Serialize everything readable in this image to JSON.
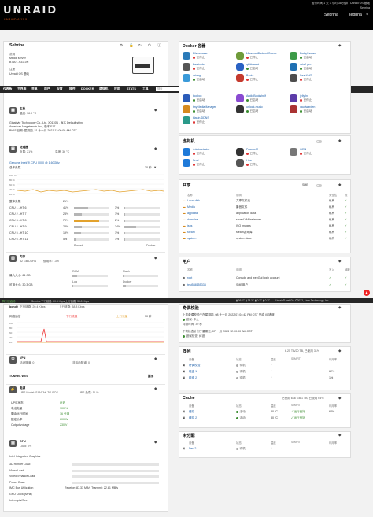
{
  "header": {
    "logo": "UNRAID",
    "logo_sub": "UNRAID 6.11.5",
    "info_line1": "运行时间 1 天 3 小时 38 分钟 | Unraid OS 基础",
    "info_line2": "Sebrina",
    "server_name": "Sebrina",
    "server_user": "sebrina"
  },
  "nav": {
    "items": [
      "仪表板",
      "主界面",
      "共享",
      "用户",
      "设置",
      "插件",
      "DOCKER",
      "虚拟机",
      "应用",
      "STATS",
      "工具"
    ],
    "search_placeholder": "搜索"
  },
  "status_bar": {
    "left": "阵列已启动",
    "mid": "Sebrina  下行链路: 20.4 Kbps    上行链路: 38.8 Kbps",
    "right": "Unraid® webGui ©2022, Lime Technology, Inc."
  },
  "system": {
    "title": "Sebrina",
    "model_label": "说明",
    "model": "Media server",
    "model_id": "B760T-X3110N",
    "registration_label": "注册",
    "registration": "Unraid OS 基础",
    "mobo": "Gigabyte Technology Co., Ltd. X0110N , 版本 Default string",
    "bios": "American Megatrends Inc., 版本 F17",
    "bios_date": "BIOS 日期: 星期四, 21 十一月 2021 12:00:00 AM CST"
  },
  "mainboard": {
    "title": "主板",
    "temp": "温度: 38.0 °C"
  },
  "processor": {
    "title": "处理器",
    "load": "负载: 21%",
    "temp": "温度: 36 °C",
    "model": "Genuine Intel(R) CPU 0000 @ 1.60GHz",
    "overall_label": "总体负载",
    "interval": "30 秒",
    "cpus": [
      {
        "name": "整体负载",
        "a": "21%",
        "b": ""
      },
      {
        "name": "CPU 1 - HT 6",
        "a": "41%",
        "b": "3%"
      },
      {
        "name": "CPU 2 - HT 7",
        "a": "23%",
        "b": "1%"
      },
      {
        "name": "CPU 3 - HT 8",
        "a": "70%",
        "b": "2%"
      },
      {
        "name": "CPU 4 - HT 9",
        "a": "23%",
        "b": "34%"
      },
      {
        "name": "CPU 5 - HT 10",
        "a": "19%",
        "b": "1%"
      },
      {
        "name": "CPU 6 - HT 11",
        "a": "5%",
        "b": "1%"
      }
    ],
    "cpu_values": [
      0.21,
      0.41,
      0.23,
      0.7,
      0.23,
      0.19,
      0.05
    ],
    "cpu_values_b": [
      0,
      0.03,
      0.01,
      0.02,
      0.34,
      0.01,
      0.01
    ],
    "extra_labels": [
      "Pinned",
      "Docker"
    ]
  },
  "memory": {
    "title": "内存",
    "total": "32 GB DDR4",
    "usage": "使用率: 13%",
    "max": "最大大小: 64 GB",
    "usable": "可用大小: 30.3 GB",
    "ram_label": "RAM",
    "flash_label": "Flash",
    "log_label": "Log",
    "docker_label": "Docker",
    "ram_pct": "13%",
    "flash_pct": "2%",
    "log_pct": "1%",
    "docker_pct": "8%"
  },
  "network": {
    "title": "网络",
    "iface": "bond0",
    "down": "下行链路: 20.4 Kbps",
    "up": "上行链路: 38.8 Kbps",
    "legend_down": "下行流量",
    "legend_up": "上行流量",
    "graph_label": "网络通信",
    "interval": "30 秒",
    "y_ticks": [
      "100",
      "80",
      "60",
      "40",
      "20",
      "0"
    ]
  },
  "vpn": {
    "title": "VPN",
    "status": "活动隧道: 0",
    "config": "非活动隧道: 0",
    "tunnel_label": "TUNNEL WG0",
    "tunnel_status": "握手"
  },
  "power": {
    "title": "电源",
    "ups_model": "UPS Model: SANTAK TG-BOX",
    "load": "UPS 负载: 11 %",
    "rows": [
      {
        "k": "UPS 状态",
        "v": "在线"
      },
      {
        "k": "电池电量",
        "v": "100 %"
      },
      {
        "k": "剩余运行时间",
        "v": "16 分钟"
      },
      {
        "k": "额定功率",
        "v": "600 W"
      },
      {
        "k": "Output voltage",
        "v": "230 V"
      }
    ]
  },
  "gpu": {
    "title": "GPU",
    "load": "Load: 0%",
    "model": "Intel Integrated Graphics",
    "rows": [
      "3D Render Load",
      "Video Load",
      "VideoEnhance Load",
      "Power Draw",
      "IMC Bus Utilization",
      "GPU Clock (MHz)",
      "Interrupts/Sec"
    ],
    "bus": "Receive: 87.33 MB/s    Transmit: 22.81 MB/s"
  },
  "docker": {
    "title": "Docker 容器",
    "containers": [
      {
        "name": "Filebrowser",
        "status": "已停止"
      },
      {
        "name": "MinecraftBedrockServer",
        "status": "已停止"
      },
      {
        "name": "EmbyServer",
        "status": "已启动"
      },
      {
        "name": "free-tools",
        "status": "已停止"
      },
      {
        "name": "qbittorrent",
        "status": "已启动"
      },
      {
        "name": "aria2-pro",
        "status": "已启动"
      },
      {
        "name": "ariang",
        "status": "已启动"
      },
      {
        "name": "Baota",
        "status": "已停止"
      },
      {
        "name": "SearXNG",
        "status": "已停止"
      },
      {
        "name": "kodbox",
        "status": "已启动"
      },
      {
        "name": "AudioBookshelf",
        "status": "已启动"
      },
      {
        "name": "jellyfin",
        "status": "已停止"
      },
      {
        "name": "tinyMediaManager",
        "status": "已启动"
      },
      {
        "name": "unlock-music",
        "status": "已启动"
      },
      {
        "name": "vaultwarden",
        "status": "已启动"
      },
      {
        "name": "klauin-DDNS",
        "status": "已停止"
      }
    ]
  },
  "vms": {
    "title": "虚拟机",
    "list": [
      {
        "name": "Administrator",
        "status": "已停止"
      },
      {
        "name": "Darwin42",
        "status": "已停止"
      },
      {
        "name": "OSM",
        "status": "已停止"
      },
      {
        "name": "Dual",
        "status": "已停止"
      },
      {
        "name": "Lion",
        "status": "已停止"
      }
    ]
  },
  "shares": {
    "title": "共享",
    "filter": "SMB",
    "headers": [
      "名称",
      "说明",
      "安全性",
      "流"
    ],
    "rows": [
      {
        "name": "Local disk",
        "desc": "共享文件夹",
        "sec": "私有"
      },
      {
        "name": "Media",
        "desc": "影音文件",
        "sec": "私有"
      },
      {
        "name": "appdata",
        "desc": "application data",
        "sec": "私有"
      },
      {
        "name": "domains",
        "desc": "saved VM instances",
        "sec": "私有"
      },
      {
        "name": "isos",
        "desc": "ISO images",
        "sec": "私有"
      },
      {
        "name": "steam",
        "desc": "steam游戏库",
        "sec": "私有"
      },
      {
        "name": "system",
        "desc": "system data",
        "sec": "私有"
      }
    ]
  },
  "users": {
    "title": "用户",
    "headers": [
      "名称",
      "说明",
      "写入",
      "读取"
    ],
    "rows": [
      {
        "name": "root",
        "desc": "Console and webGui login account"
      },
      {
        "name": "test548155334",
        "desc": "SMB用户"
      }
    ]
  },
  "parity": {
    "title": "奇偶校验",
    "last": "上次奇偶校验于在星期四, 08 十一月 2022 07:04:42 PM CST 完成 (0 错误)",
    "state": "错误",
    "state_val": "中止",
    "duration": "持续时间: 39 秒",
    "next": "下次检查计划于星期五, 07 一月 2023 12:00:00 AM CST",
    "mode": "错误检查",
    "mode_val": "纠错"
  },
  "array": {
    "title": "阵列",
    "summary": "6.25 TB/20 TB, 已使用 31%",
    "headers": [
      "设备",
      "状态",
      "温度",
      "SMART",
      "利用率"
    ],
    "rows": [
      {
        "name": "奇偶校验",
        "state": "待机",
        "temp": "*",
        "smart": "",
        "util": ""
      },
      {
        "name": "磁盘 1",
        "state": "待机",
        "temp": "*",
        "smart": "",
        "util": "62%"
      },
      {
        "name": "磁盘 2",
        "state": "待机",
        "temp": "*",
        "smart": "",
        "util": "1%"
      }
    ]
  },
  "cache": {
    "title": "Cache",
    "summary": "已使用 636 GB/1 TB, 已使用 64%",
    "headers": [
      "设备",
      "状态",
      "温度",
      "SMART",
      "利用率"
    ],
    "rows": [
      {
        "name": "缓存",
        "state": "活动",
        "temp": "30 °C",
        "smart": "运行良好",
        "util": "64%"
      },
      {
        "name": "缓存 2",
        "state": "活动",
        "temp": "30 °C",
        "smart": "运行良好",
        "util": ""
      }
    ]
  },
  "unassigned": {
    "title": "未分配",
    "headers": [
      "设备",
      "状态",
      "温度",
      "SMART",
      "利用率"
    ],
    "rows": [
      {
        "name": "Dev 2",
        "state": "待机",
        "temp": "*",
        "smart": "",
        "util": ""
      }
    ]
  },
  "colors": {
    "accent": "#e35b1a",
    "green": "#3a8d2f",
    "red": "#e22222",
    "header_bg": "#000000",
    "nav_bg": "#262626"
  }
}
